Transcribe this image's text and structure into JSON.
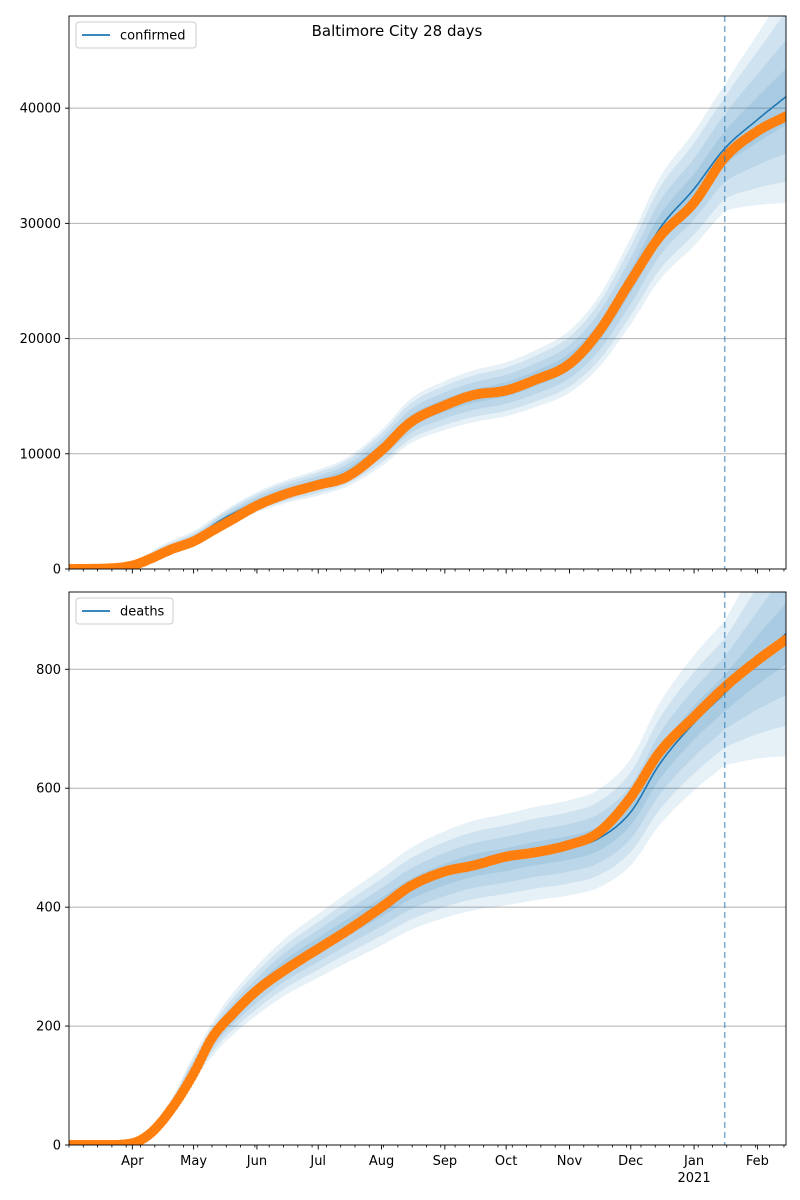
{
  "figure": {
    "title": "Baltimore City 28 days"
  },
  "colors": {
    "model_line": "#1f77b4",
    "observed": "#ff7f0e",
    "band": "#1f77b4",
    "grid": "#b0b0b0",
    "forecast_line": "#1f77b4"
  },
  "x_axis": {
    "start": "2020-03-01",
    "end": "2021-02-15",
    "month_ticks": [
      {
        "date": "2020-04-01",
        "label": "Apr"
      },
      {
        "date": "2020-05-01",
        "label": "May"
      },
      {
        "date": "2020-06-01",
        "label": "Jun"
      },
      {
        "date": "2020-07-01",
        "label": "Jul"
      },
      {
        "date": "2020-08-01",
        "label": "Aug"
      },
      {
        "date": "2020-09-01",
        "label": "Sep"
      },
      {
        "date": "2020-10-01",
        "label": "Oct"
      },
      {
        "date": "2020-11-01",
        "label": "Nov"
      },
      {
        "date": "2020-12-01",
        "label": "Dec"
      },
      {
        "date": "2021-01-01",
        "label": "Jan"
      },
      {
        "date": "2021-02-01",
        "label": "Feb"
      }
    ],
    "year_label": {
      "date": "2021-01-01",
      "label": "2021"
    },
    "forecast_start": "2021-01-16"
  },
  "chart_data": [
    {
      "type": "line",
      "legend": "confirmed",
      "legend_position": "upper-left",
      "grid": "horizontal",
      "ylim": [
        0,
        48000
      ],
      "yticks": [
        0,
        10000,
        20000,
        30000,
        40000
      ],
      "model": {
        "x": [
          "2020-03-01",
          "2020-03-20",
          "2020-04-01",
          "2020-04-15",
          "2020-05-01",
          "2020-05-15",
          "2020-06-01",
          "2020-06-15",
          "2020-07-01",
          "2020-07-15",
          "2020-08-01",
          "2020-08-15",
          "2020-09-01",
          "2020-09-15",
          "2020-10-01",
          "2020-10-15",
          "2020-11-01",
          "2020-11-15",
          "2020-12-01",
          "2020-12-15",
          "2021-01-01",
          "2021-01-16",
          "2021-02-01",
          "2021-02-15"
        ],
        "y": [
          0,
          100,
          400,
          1600,
          2700,
          4300,
          5800,
          6700,
          7500,
          8400,
          10500,
          12800,
          14200,
          15000,
          15600,
          16500,
          18000,
          20500,
          25000,
          29500,
          33000,
          36500,
          39000,
          41000
        ],
        "band_rel": [
          0.04,
          0.08,
          0.12,
          0.15
        ],
        "band_min": [
          120,
          250,
          400,
          600
        ]
      },
      "observed": {
        "x": [
          "2020-03-01",
          "2020-03-20",
          "2020-04-01",
          "2020-04-10",
          "2020-04-20",
          "2020-05-01",
          "2020-05-10",
          "2020-05-20",
          "2020-06-01",
          "2020-06-15",
          "2020-07-01",
          "2020-07-15",
          "2020-08-01",
          "2020-08-15",
          "2020-09-01",
          "2020-09-15",
          "2020-10-01",
          "2020-10-15",
          "2020-11-01",
          "2020-11-15",
          "2020-12-01",
          "2020-12-15",
          "2021-01-01",
          "2021-01-16",
          "2021-02-01",
          "2021-02-15"
        ],
        "y": [
          0,
          50,
          300,
          900,
          1700,
          2400,
          3300,
          4300,
          5500,
          6500,
          7300,
          8000,
          10300,
          12700,
          14200,
          15100,
          15500,
          16400,
          17800,
          20500,
          25000,
          28800,
          31800,
          35700,
          38000,
          39300
        ]
      }
    },
    {
      "type": "line",
      "legend": "deaths",
      "legend_position": "upper-left",
      "grid": "horizontal",
      "ylim": [
        0,
        930
      ],
      "yticks": [
        0,
        200,
        400,
        600,
        800
      ],
      "model": {
        "x": [
          "2020-03-01",
          "2020-03-20",
          "2020-04-01",
          "2020-04-15",
          "2020-05-01",
          "2020-05-15",
          "2020-06-01",
          "2020-06-15",
          "2020-07-01",
          "2020-07-15",
          "2020-08-01",
          "2020-08-15",
          "2020-09-01",
          "2020-09-15",
          "2020-10-01",
          "2020-10-15",
          "2020-11-01",
          "2020-11-15",
          "2020-12-01",
          "2020-12-15",
          "2021-01-01",
          "2021-01-16",
          "2021-02-01",
          "2021-02-15"
        ],
        "y": [
          0,
          1,
          5,
          40,
          130,
          200,
          260,
          300,
          335,
          365,
          400,
          430,
          455,
          470,
          480,
          490,
          500,
          515,
          560,
          640,
          710,
          760,
          815,
          860
        ],
        "band_rel": [
          0.04,
          0.08,
          0.12,
          0.16
        ],
        "band_min": [
          3,
          6,
          9,
          12
        ]
      },
      "observed": {
        "x": [
          "2020-03-01",
          "2020-03-20",
          "2020-04-01",
          "2020-04-10",
          "2020-04-20",
          "2020-05-01",
          "2020-05-10",
          "2020-05-20",
          "2020-06-01",
          "2020-06-15",
          "2020-07-01",
          "2020-07-15",
          "2020-08-01",
          "2020-08-15",
          "2020-09-01",
          "2020-09-15",
          "2020-10-01",
          "2020-10-15",
          "2020-11-01",
          "2020-11-15",
          "2020-12-01",
          "2020-12-15",
          "2021-01-01",
          "2021-01-16",
          "2021-02-01",
          "2021-02-15"
        ],
        "y": [
          0,
          0,
          3,
          20,
          60,
          120,
          180,
          220,
          260,
          295,
          330,
          360,
          400,
          435,
          460,
          470,
          485,
          492,
          505,
          525,
          585,
          660,
          720,
          770,
          815,
          850
        ]
      }
    }
  ]
}
